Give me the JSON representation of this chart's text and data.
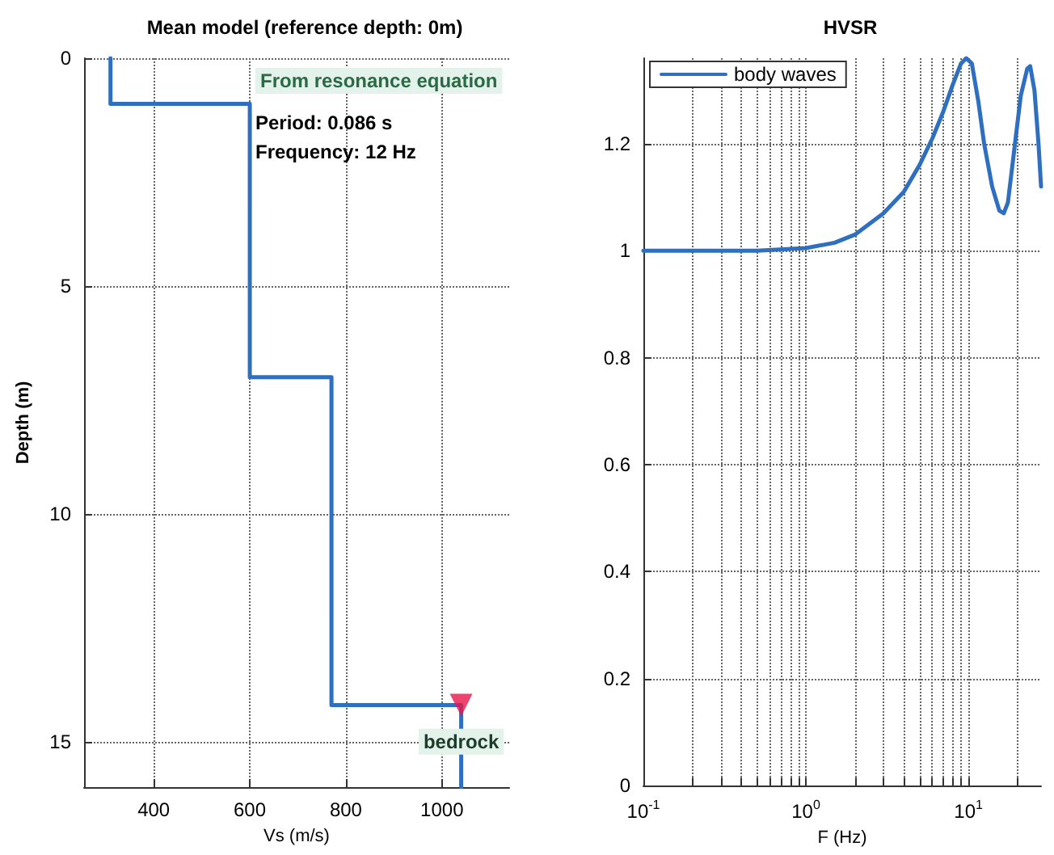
{
  "chart_data": [
    {
      "type": "line",
      "title": "Mean model (reference depth: 0m)",
      "xlabel": "Vs (m/s)",
      "ylabel": "Depth (m)",
      "xlim": [
        255,
        1140
      ],
      "ylim": [
        16,
        0
      ],
      "xticks": [
        400,
        600,
        800,
        1000
      ],
      "yticks": [
        0,
        5,
        10,
        15
      ],
      "grid": true,
      "series": [
        {
          "x": [
            310,
            310,
            600,
            600,
            770,
            770,
            1040,
            1040
          ],
          "values": [
            0,
            1,
            1,
            7,
            7,
            14.2,
            14.2,
            16
          ],
          "color": "#2e6fbf"
        },
        {
          "type": "scatter",
          "x": [
            1040
          ],
          "values": [
            14.2
          ],
          "color": "#e8174a",
          "marker": "triangle"
        }
      ],
      "annotations": [
        "From resonance equation",
        "Period: 0.086 s",
        "Frequency: 12 Hz",
        {
          "text": "bedrock",
          "x": 1040,
          "y": 15
        }
      ]
    },
    {
      "type": "line",
      "title": "HVSR",
      "xlabel": "F (Hz)",
      "log": "x",
      "xlim": [
        0.1,
        28
      ],
      "ylim": [
        0,
        1.36
      ],
      "xticks": [
        {
          "value": 0.1,
          "label": "10$^{-1}$"
        },
        {
          "value": 0.2,
          "label": null
        },
        {
          "value": 0.3,
          "label": null
        },
        {
          "value": 0.4,
          "label": null
        },
        {
          "value": 0.5,
          "label": null
        },
        {
          "value": 0.6,
          "label": null
        },
        {
          "value": 0.7,
          "label": null
        },
        {
          "value": 0.8,
          "label": null
        },
        {
          "value": 0.9,
          "label": null
        },
        {
          "value": 1,
          "label": "10$^{0}$"
        },
        {
          "value": 2,
          "label": null
        },
        {
          "value": 3,
          "label": null
        },
        {
          "value": 4,
          "label": null
        },
        {
          "value": 5,
          "label": null
        },
        {
          "value": 6,
          "label": null
        },
        {
          "value": 7,
          "label": null
        },
        {
          "value": 8,
          "label": null
        },
        {
          "value": 9,
          "label": null
        },
        {
          "value": 10,
          "label": "10$^{1}$"
        },
        {
          "value": 20,
          "label": null
        }
      ],
      "yticks": [
        0,
        0.2,
        0.4,
        0.6,
        0.8,
        1,
        1.2
      ],
      "grid": true,
      "legend": "top left",
      "series": [
        {
          "name": "body waves",
          "color": "#2e6fbf",
          "x": [
            0.1,
            0.5,
            1,
            1.5,
            2,
            3,
            4,
            5,
            6,
            7,
            8,
            9,
            9.7,
            10.5,
            11.5,
            12.5,
            14,
            15.5,
            16.5,
            17.5,
            19,
            21,
            23,
            24,
            25.5,
            27,
            28
          ],
          "values": [
            1,
            1,
            1.005,
            1.015,
            1.03,
            1.07,
            1.11,
            1.16,
            1.21,
            1.26,
            1.31,
            1.35,
            1.36,
            1.35,
            1.28,
            1.2,
            1.12,
            1.075,
            1.07,
            1.09,
            1.18,
            1.29,
            1.34,
            1.345,
            1.3,
            1.2,
            1.12
          ]
        }
      ]
    }
  ]
}
